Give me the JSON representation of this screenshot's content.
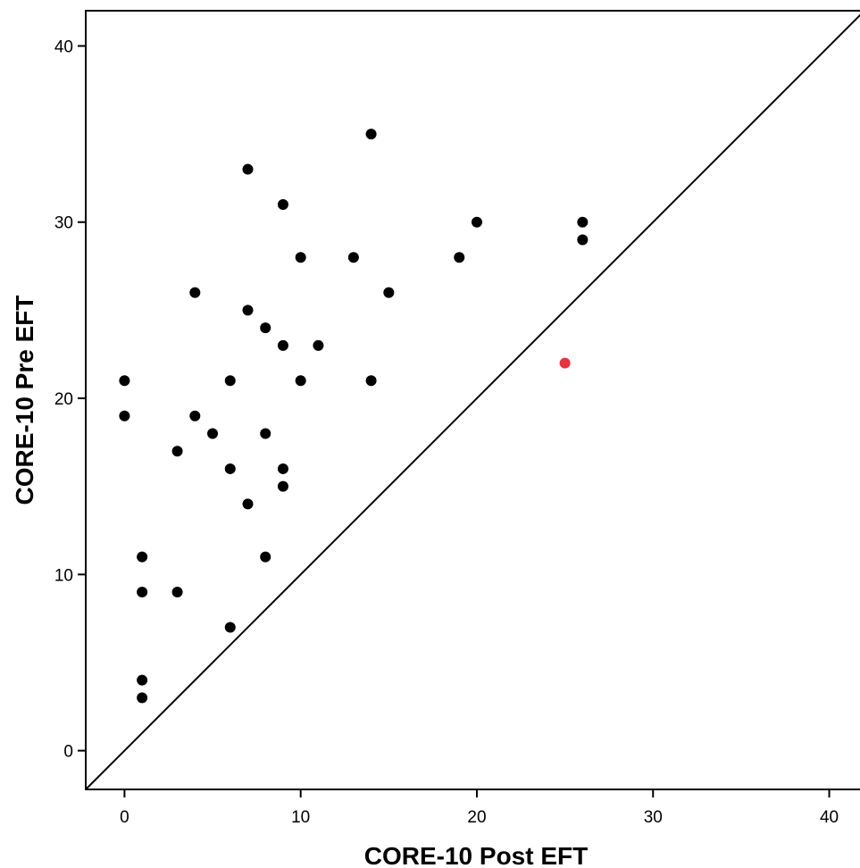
{
  "chart_data": {
    "type": "scatter",
    "xlabel": "CORE-10 Post EFT",
    "ylabel": "CORE-10 Pre EFT",
    "xlim": [
      -2.2,
      42
    ],
    "ylim": [
      -2.2,
      42
    ],
    "xticks": [
      "0",
      "10",
      "20",
      "30",
      "40"
    ],
    "yticks": [
      "0",
      "10",
      "20",
      "30",
      "40"
    ],
    "tick_values": [
      0,
      10,
      20,
      30,
      40
    ],
    "reference_line": "y = x",
    "grid": false,
    "colors": {
      "points": "#000000",
      "highlight": "#e8323c",
      "axes": "#000000"
    },
    "series": [
      {
        "values": [
          [
            14,
            35
          ],
          [
            7,
            33
          ],
          [
            9,
            31
          ],
          [
            20,
            30
          ],
          [
            26,
            30
          ],
          [
            26,
            29
          ],
          [
            10,
            28
          ],
          [
            13,
            28
          ],
          [
            19,
            28
          ],
          [
            4,
            26
          ],
          [
            15,
            26
          ],
          [
            7,
            25
          ],
          [
            8,
            24
          ],
          [
            9,
            23
          ],
          [
            11,
            23
          ],
          [
            0,
            21
          ],
          [
            6,
            21
          ],
          [
            10,
            21
          ],
          [
            14,
            21
          ],
          [
            0,
            19
          ],
          [
            4,
            19
          ],
          [
            5,
            18
          ],
          [
            8,
            18
          ],
          [
            3,
            17
          ],
          [
            6,
            16
          ],
          [
            9,
            16
          ],
          [
            9,
            15
          ],
          [
            7,
            14
          ],
          [
            1,
            11
          ],
          [
            8,
            11
          ],
          [
            1,
            9
          ],
          [
            3,
            9
          ],
          [
            6,
            7
          ],
          [
            1,
            4
          ],
          [
            1,
            3
          ]
        ],
        "color": "#000000"
      },
      {
        "values": [
          [
            25,
            22
          ]
        ],
        "color": "#e8323c"
      }
    ]
  }
}
